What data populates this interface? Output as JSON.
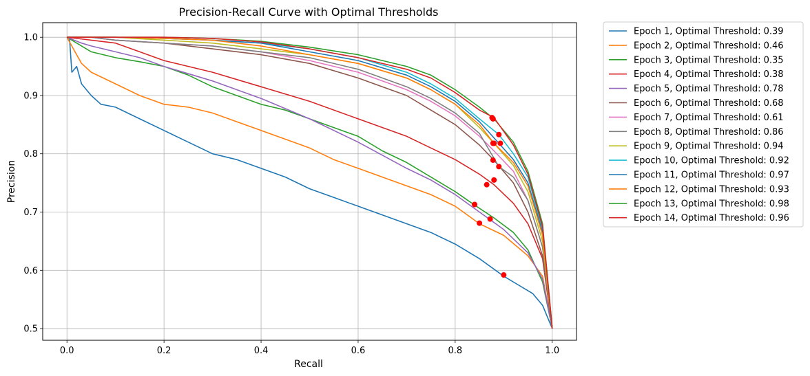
{
  "chart_data": {
    "type": "line",
    "title": "Precision-Recall Curve with Optimal Thresholds",
    "xlabel": "Recall",
    "ylabel": "Precision",
    "xlim": [
      -0.05,
      1.05
    ],
    "ylim": [
      0.48,
      1.025
    ],
    "xticks": [
      "0.0",
      "0.2",
      "0.4",
      "0.6",
      "0.8",
      "1.0"
    ],
    "yticks": [
      "0.5",
      "0.6",
      "0.7",
      "0.8",
      "0.9",
      "1.0"
    ],
    "grid": true,
    "legend_position": "outside-right",
    "optimal_marker_color": "#ff0000",
    "series": [
      {
        "name": "Epoch 1, Optimal Threshold: 0.39",
        "color": "#1f77b4",
        "x": [
          0.0,
          0.005,
          0.01,
          0.02,
          0.03,
          0.05,
          0.07,
          0.1,
          0.15,
          0.2,
          0.25,
          0.3,
          0.35,
          0.4,
          0.45,
          0.5,
          0.55,
          0.6,
          0.65,
          0.7,
          0.75,
          0.8,
          0.85,
          0.9,
          0.93,
          0.96,
          0.98,
          0.99,
          1.0
        ],
        "y": [
          1.0,
          1.0,
          0.94,
          0.95,
          0.92,
          0.9,
          0.885,
          0.88,
          0.86,
          0.84,
          0.82,
          0.8,
          0.79,
          0.775,
          0.76,
          0.74,
          0.725,
          0.71,
          0.695,
          0.68,
          0.665,
          0.645,
          0.62,
          0.59,
          0.575,
          0.56,
          0.54,
          0.52,
          0.5
        ],
        "opt": [
          0.9,
          0.592
        ]
      },
      {
        "name": "Epoch 2, Optimal Threshold: 0.46",
        "color": "#ff7f0e",
        "x": [
          0.0,
          0.02,
          0.03,
          0.05,
          0.1,
          0.15,
          0.2,
          0.25,
          0.3,
          0.35,
          0.4,
          0.45,
          0.5,
          0.55,
          0.6,
          0.65,
          0.7,
          0.75,
          0.8,
          0.85,
          0.9,
          0.95,
          0.98,
          1.0
        ],
        "y": [
          1.0,
          0.97,
          0.955,
          0.94,
          0.92,
          0.9,
          0.885,
          0.88,
          0.87,
          0.855,
          0.84,
          0.825,
          0.81,
          0.79,
          0.775,
          0.76,
          0.745,
          0.73,
          0.71,
          0.68,
          0.66,
          0.625,
          0.59,
          0.5
        ],
        "opt": [
          0.85,
          0.681
        ]
      },
      {
        "name": "Epoch 3, Optimal Threshold: 0.35",
        "color": "#2ca02c",
        "x": [
          0.0,
          0.05,
          0.1,
          0.15,
          0.2,
          0.25,
          0.3,
          0.35,
          0.4,
          0.45,
          0.5,
          0.55,
          0.6,
          0.65,
          0.7,
          0.75,
          0.8,
          0.84,
          0.88,
          0.92,
          0.95,
          0.98,
          1.0
        ],
        "y": [
          1.0,
          0.975,
          0.965,
          0.958,
          0.95,
          0.935,
          0.915,
          0.9,
          0.885,
          0.875,
          0.86,
          0.845,
          0.83,
          0.805,
          0.785,
          0.76,
          0.735,
          0.712,
          0.69,
          0.665,
          0.635,
          0.58,
          0.5
        ],
        "opt": [
          0.84,
          0.713
        ]
      },
      {
        "name": "Epoch 4, Optimal Threshold: 0.38",
        "color": "#d62728",
        "x": [
          0.0,
          0.05,
          0.1,
          0.15,
          0.2,
          0.3,
          0.4,
          0.5,
          0.6,
          0.7,
          0.75,
          0.8,
          0.85,
          0.88,
          0.92,
          0.95,
          0.98,
          1.0
        ],
        "y": [
          1.0,
          0.995,
          0.99,
          0.975,
          0.96,
          0.94,
          0.915,
          0.89,
          0.86,
          0.83,
          0.81,
          0.79,
          0.765,
          0.747,
          0.715,
          0.68,
          0.62,
          0.5
        ],
        "opt": [
          0.865,
          0.747
        ]
      },
      {
        "name": "Epoch 5, Optimal Threshold: 0.78",
        "color": "#9467bd",
        "x": [
          0.0,
          0.03,
          0.05,
          0.1,
          0.15,
          0.2,
          0.3,
          0.4,
          0.5,
          0.6,
          0.7,
          0.75,
          0.8,
          0.85,
          0.87,
          0.9,
          0.95,
          0.98,
          1.0
        ],
        "y": [
          1.0,
          0.99,
          0.985,
          0.975,
          0.965,
          0.95,
          0.925,
          0.895,
          0.86,
          0.82,
          0.775,
          0.755,
          0.73,
          0.7,
          0.688,
          0.67,
          0.63,
          0.585,
          0.5
        ],
        "opt": [
          0.872,
          0.688
        ]
      },
      {
        "name": "Epoch 6, Optimal Threshold: 0.68",
        "color": "#8c564b",
        "x": [
          0.0,
          0.05,
          0.1,
          0.2,
          0.3,
          0.4,
          0.5,
          0.6,
          0.7,
          0.75,
          0.8,
          0.85,
          0.88,
          0.92,
          0.95,
          0.98,
          1.0
        ],
        "y": [
          1.0,
          1.0,
          0.995,
          0.99,
          0.98,
          0.97,
          0.955,
          0.93,
          0.9,
          0.875,
          0.85,
          0.815,
          0.789,
          0.75,
          0.7,
          0.625,
          0.5
        ],
        "opt": [
          0.878,
          0.789
        ]
      },
      {
        "name": "Epoch 7, Optimal Threshold: 0.61",
        "color": "#e377c2",
        "x": [
          0.0,
          0.05,
          0.1,
          0.2,
          0.3,
          0.4,
          0.5,
          0.6,
          0.7,
          0.75,
          0.8,
          0.85,
          0.88,
          0.92,
          0.95,
          0.98,
          1.0
        ],
        "y": [
          1.0,
          1.0,
          0.995,
          0.99,
          0.985,
          0.975,
          0.96,
          0.94,
          0.91,
          0.89,
          0.865,
          0.83,
          0.805,
          0.77,
          0.72,
          0.64,
          0.5
        ],
        "opt": [
          0.88,
          0.755
        ]
      },
      {
        "name": "Epoch 8, Optimal Threshold: 0.86",
        "color": "#7f7f7f",
        "x": [
          0.0,
          0.05,
          0.1,
          0.2,
          0.3,
          0.4,
          0.5,
          0.6,
          0.7,
          0.75,
          0.8,
          0.85,
          0.89,
          0.92,
          0.95,
          0.98,
          1.0
        ],
        "y": [
          1.0,
          1.0,
          0.995,
          0.99,
          0.985,
          0.975,
          0.965,
          0.945,
          0.915,
          0.895,
          0.87,
          0.835,
          0.778,
          0.76,
          0.72,
          0.64,
          0.5
        ],
        "opt": [
          0.89,
          0.778
        ]
      },
      {
        "name": "Epoch 9, Optimal Threshold: 0.94",
        "color": "#bcbd22",
        "x": [
          0.0,
          0.05,
          0.1,
          0.2,
          0.3,
          0.4,
          0.5,
          0.6,
          0.7,
          0.75,
          0.8,
          0.85,
          0.88,
          0.92,
          0.95,
          0.98,
          1.0
        ],
        "y": [
          1.0,
          1.0,
          1.0,
          0.995,
          0.99,
          0.98,
          0.97,
          0.955,
          0.93,
          0.91,
          0.885,
          0.845,
          0.818,
          0.78,
          0.735,
          0.65,
          0.5
        ],
        "opt": [
          0.88,
          0.818
        ]
      },
      {
        "name": "Epoch 10, Optimal Threshold: 0.92",
        "color": "#17becf",
        "x": [
          0.0,
          0.05,
          0.1,
          0.2,
          0.3,
          0.4,
          0.5,
          0.6,
          0.7,
          0.75,
          0.8,
          0.85,
          0.89,
          0.92,
          0.95,
          0.98,
          1.0
        ],
        "y": [
          1.0,
          1.0,
          1.0,
          0.998,
          0.995,
          0.99,
          0.98,
          0.965,
          0.94,
          0.92,
          0.895,
          0.86,
          0.833,
          0.8,
          0.76,
          0.67,
          0.5
        ],
        "opt": [
          0.89,
          0.833
        ]
      },
      {
        "name": "Epoch 11, Optimal Threshold: 0.97",
        "color": "#1f77b4",
        "x": [
          0.0,
          0.05,
          0.1,
          0.2,
          0.3,
          0.4,
          0.5,
          0.6,
          0.7,
          0.75,
          0.8,
          0.85,
          0.89,
          0.92,
          0.95,
          0.98,
          1.0
        ],
        "y": [
          1.0,
          1.0,
          1.0,
          0.998,
          0.995,
          0.99,
          0.975,
          0.96,
          0.935,
          0.915,
          0.89,
          0.855,
          0.818,
          0.79,
          0.75,
          0.665,
          0.5
        ],
        "opt": [
          0.893,
          0.818
        ]
      },
      {
        "name": "Epoch 12, Optimal Threshold: 0.93",
        "color": "#ff7f0e",
        "x": [
          0.0,
          0.05,
          0.1,
          0.2,
          0.3,
          0.4,
          0.5,
          0.6,
          0.7,
          0.75,
          0.8,
          0.85,
          0.88,
          0.92,
          0.95,
          0.98,
          1.0
        ],
        "y": [
          1.0,
          1.0,
          1.0,
          0.998,
          0.995,
          0.985,
          0.97,
          0.955,
          0.93,
          0.91,
          0.885,
          0.85,
          0.818,
          0.785,
          0.745,
          0.66,
          0.5
        ],
        "opt": [
          0.878,
          0.818
        ]
      },
      {
        "name": "Epoch 13, Optimal Threshold: 0.98",
        "color": "#2ca02c",
        "x": [
          0.0,
          0.05,
          0.1,
          0.2,
          0.3,
          0.4,
          0.5,
          0.6,
          0.7,
          0.75,
          0.8,
          0.85,
          0.88,
          0.92,
          0.95,
          0.98,
          1.0
        ],
        "y": [
          1.0,
          1.0,
          1.0,
          1.0,
          0.998,
          0.993,
          0.983,
          0.97,
          0.95,
          0.935,
          0.91,
          0.88,
          0.86,
          0.82,
          0.77,
          0.68,
          0.5
        ],
        "opt": [
          0.878,
          0.86
        ]
      },
      {
        "name": "Epoch 14, Optimal Threshold: 0.96",
        "color": "#d62728",
        "x": [
          0.0,
          0.05,
          0.1,
          0.2,
          0.3,
          0.4,
          0.5,
          0.6,
          0.7,
          0.75,
          0.8,
          0.85,
          0.88,
          0.92,
          0.95,
          0.98,
          1.0
        ],
        "y": [
          1.0,
          1.0,
          1.0,
          1.0,
          0.998,
          0.992,
          0.98,
          0.965,
          0.945,
          0.93,
          0.905,
          0.875,
          0.862,
          0.815,
          0.765,
          0.675,
          0.5
        ],
        "opt": [
          0.876,
          0.862
        ]
      }
    ]
  }
}
